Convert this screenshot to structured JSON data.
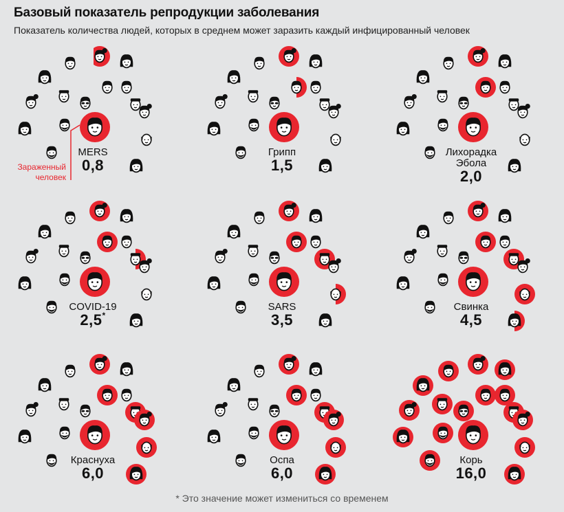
{
  "header": {
    "title": "Базовый показатель репродукции заболевания",
    "subtitle": "Показатель количества людей, которых в среднем может заразить каждый инфицированный человек"
  },
  "legend": {
    "infected_person_label": "Зараженный человек"
  },
  "footnote": "* Это значение может измениться со временем",
  "colors": {
    "background": "#e4e5e6",
    "infected": "#e8262f",
    "ink": "#111111",
    "skin": "#ffffff"
  },
  "chart_data": {
    "type": "pictogram",
    "title": "Базовый показатель репродукции заболевания",
    "subtitle": "Показатель количества людей, которых в среднем может заразить каждый инфицированный человек",
    "people_per_panel": 16,
    "series": [
      {
        "name": "MERS",
        "value": 0.8,
        "label": "0,8",
        "footnote_mark": ""
      },
      {
        "name": "Грипп",
        "value": 1.5,
        "label": "1,5",
        "footnote_mark": ""
      },
      {
        "name": "Лихорадка Эбола",
        "value": 2.0,
        "label": "2,0",
        "footnote_mark": ""
      },
      {
        "name": "COVID-19",
        "value": 2.5,
        "label": "2,5",
        "footnote_mark": "*"
      },
      {
        "name": "SARS",
        "value": 3.5,
        "label": "3,5",
        "footnote_mark": ""
      },
      {
        "name": "Свинка",
        "value": 4.5,
        "label": "4,5",
        "footnote_mark": ""
      },
      {
        "name": "Краснуха",
        "value": 6.0,
        "label": "6,0",
        "footnote_mark": ""
      },
      {
        "name": "Оспа",
        "value": 6.0,
        "label": "6,0",
        "footnote_mark": ""
      },
      {
        "name": "Корь",
        "value": 16.0,
        "label": "16,0",
        "footnote_mark": ""
      }
    ]
  }
}
